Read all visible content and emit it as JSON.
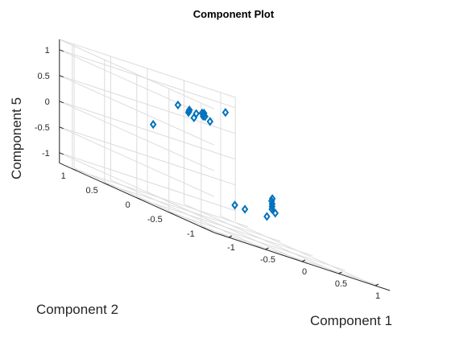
{
  "chart_data": {
    "type": "scatter",
    "title": "Component Plot",
    "xlabel": "Component 1",
    "ylabel": "Component 2",
    "zlabel": "Component 5",
    "xlim": [
      -1.2,
      1.2
    ],
    "ylim": [
      -1.2,
      1.2
    ],
    "zlim": [
      -1.2,
      1.2
    ],
    "xticks": [
      -1,
      -0.5,
      0,
      0.5,
      1
    ],
    "yticks": [
      -1,
      -0.5,
      0,
      0.5,
      1
    ],
    "zticks": [
      -1,
      -0.5,
      0,
      0.5,
      1
    ],
    "xtick_labels": [
      "-1",
      "-0.5",
      "0",
      "0.5",
      "1"
    ],
    "ytick_labels": [
      "-1",
      "-0.5",
      "0",
      "0.5",
      "1"
    ],
    "ztick_labels": [
      "-1",
      "-0.5",
      "0",
      "0.5",
      "1"
    ],
    "grid": true,
    "marker": "diamond",
    "color": "#0072bd",
    "points": [
      {
        "x": -0.55,
        "y": 0.1,
        "z": 0.85
      },
      {
        "x": -0.45,
        "y": 0.05,
        "z": 0.78
      },
      {
        "x": -0.4,
        "y": 0.1,
        "z": 0.8
      },
      {
        "x": -0.35,
        "y": 0.15,
        "z": 0.82
      },
      {
        "x": -0.42,
        "y": 0.0,
        "z": 0.72
      },
      {
        "x": -0.3,
        "y": 0.1,
        "z": 0.8
      },
      {
        "x": -0.25,
        "y": 0.05,
        "z": 0.8
      },
      {
        "x": -0.2,
        "y": 0.0,
        "z": 0.75
      },
      {
        "x": -0.22,
        "y": 0.1,
        "z": 0.85
      },
      {
        "x": -0.18,
        "y": 0.1,
        "z": 0.8
      },
      {
        "x": -0.15,
        "y": 0.15,
        "z": 0.85
      },
      {
        "x": 0.45,
        "y": 0.5,
        "z": 0.95
      },
      {
        "x": -0.8,
        "y": 0.2,
        "z": 0.3
      },
      {
        "x": 0.6,
        "y": -0.05,
        "z": -0.55
      },
      {
        "x": 0.62,
        "y": -0.03,
        "z": -0.5
      },
      {
        "x": 0.63,
        "y": -0.02,
        "z": -0.45
      },
      {
        "x": 0.64,
        "y": 0.0,
        "z": -0.4
      },
      {
        "x": 0.65,
        "y": 0.0,
        "z": -0.35
      },
      {
        "x": 0.62,
        "y": -0.08,
        "z": -0.6
      },
      {
        "x": 0.4,
        "y": -0.2,
        "z": -0.7
      },
      {
        "x": 0.1,
        "y": -0.2,
        "z": -0.7
      },
      {
        "x": 0.05,
        "y": -0.1,
        "z": -0.7
      }
    ]
  }
}
